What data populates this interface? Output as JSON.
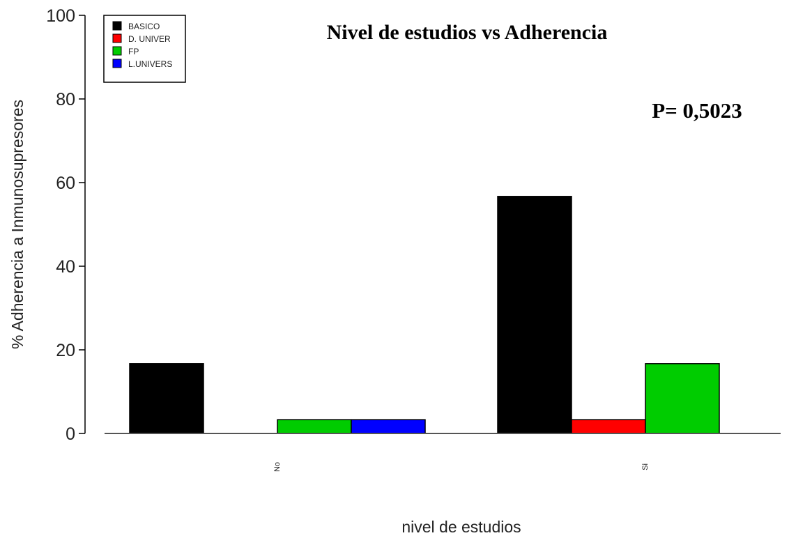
{
  "chart_data": {
    "type": "bar",
    "title": "Nivel de estudios vs Adherencia",
    "annotation": "P= 0,5023",
    "xlabel": "nivel de estudios",
    "ylabel": "% Adherencia a Inmunosupresores",
    "ylim": [
      0,
      100
    ],
    "yticks": [
      "0",
      "20",
      "40",
      "60",
      "80",
      "100"
    ],
    "categories": [
      "No",
      "Si"
    ],
    "series": [
      {
        "name": "BASICO",
        "color": "#000000",
        "values": [
          16.7,
          56.7
        ]
      },
      {
        "name": "D. UNIVER",
        "color": "#ff0000",
        "values": [
          0,
          3.3
        ]
      },
      {
        "name": "FP",
        "color": "#00cc00",
        "values": [
          3.3,
          16.7
        ]
      },
      {
        "name": "L.UNIVERS",
        "color": "#0000ff",
        "values": [
          3.3,
          0
        ]
      }
    ],
    "legend_position": "top-left",
    "grid": false
  }
}
